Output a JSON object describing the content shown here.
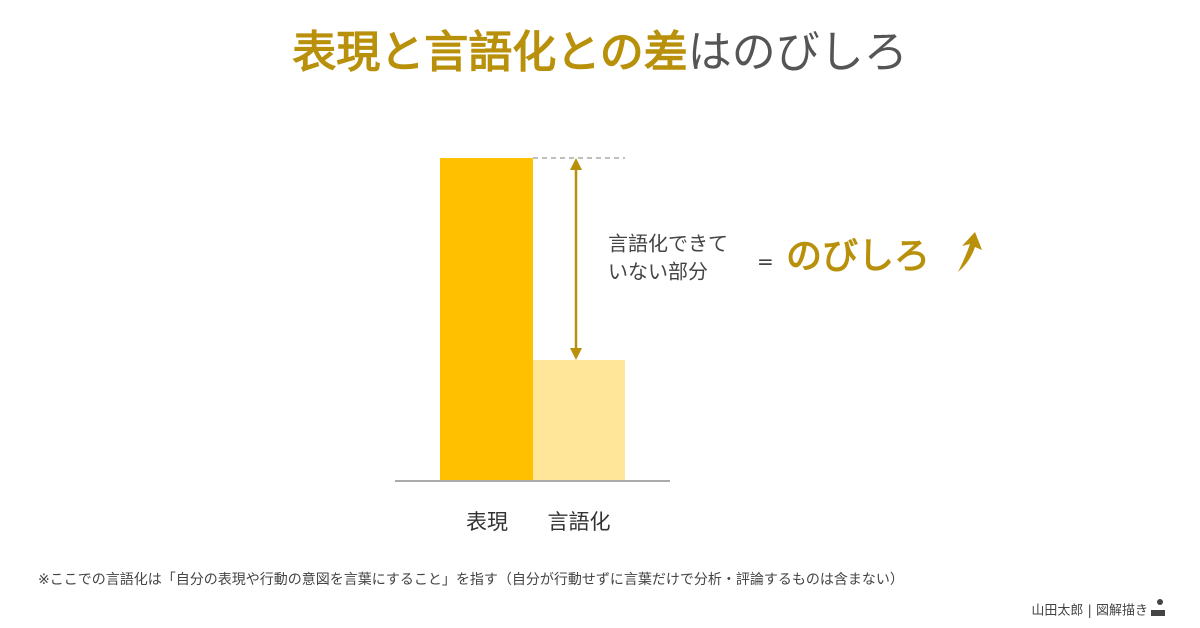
{
  "title": {
    "highlight": "表現と言語化との差",
    "rest": "はのびしろ"
  },
  "bars": [
    {
      "label": "表現"
    },
    {
      "label": "言語化"
    }
  ],
  "annotation": {
    "lines": [
      "言語化できて",
      "いない部分"
    ],
    "equals": "=",
    "result": "のびしろ"
  },
  "footnote": "※ここでの言語化は「自分の表現や行動の意図を言葉にすること」を指す（自分が行動せずに言葉だけで分析・評論するものは含まない）",
  "credit": "山田太郎 | 図解描き"
}
